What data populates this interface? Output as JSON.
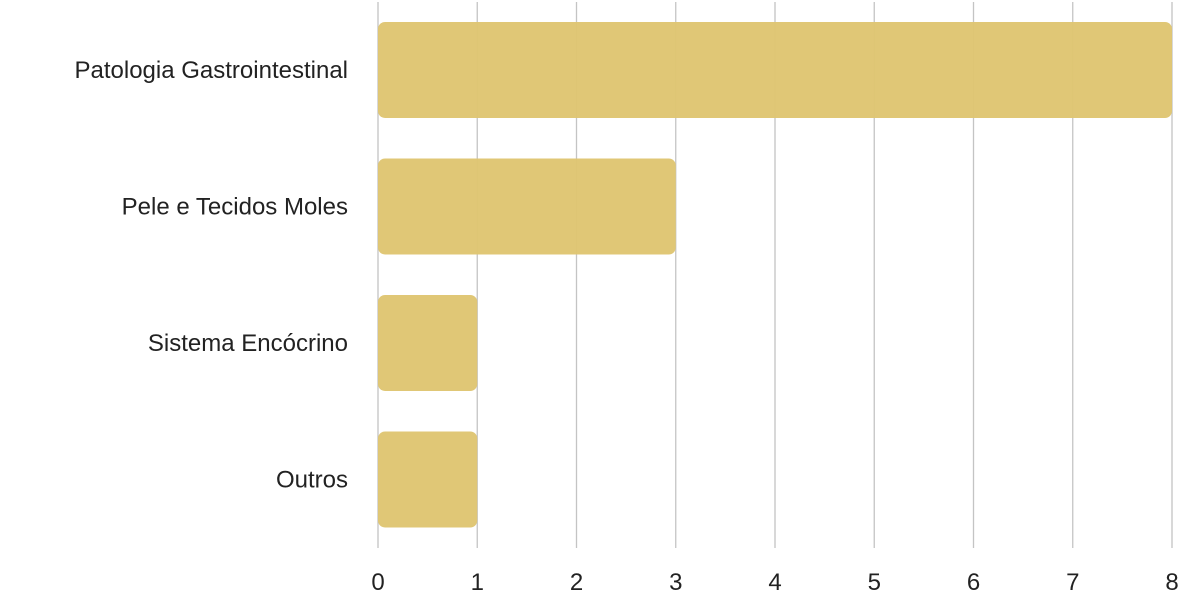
{
  "chart_data": {
    "type": "bar",
    "orientation": "horizontal",
    "categories": [
      "Patologia Gastrointestinal",
      "Pele e Tecidos Moles",
      "Sistema Encócrino",
      "Outros"
    ],
    "values": [
      8,
      3,
      1,
      1
    ],
    "xlim": [
      0,
      8
    ],
    "x_ticks": [
      "0",
      "1",
      "2",
      "3",
      "4",
      "5",
      "6",
      "7",
      "8"
    ],
    "title": "",
    "xlabel": "",
    "ylabel": "",
    "grid": "vertical",
    "bar_color": "#dfc572"
  }
}
